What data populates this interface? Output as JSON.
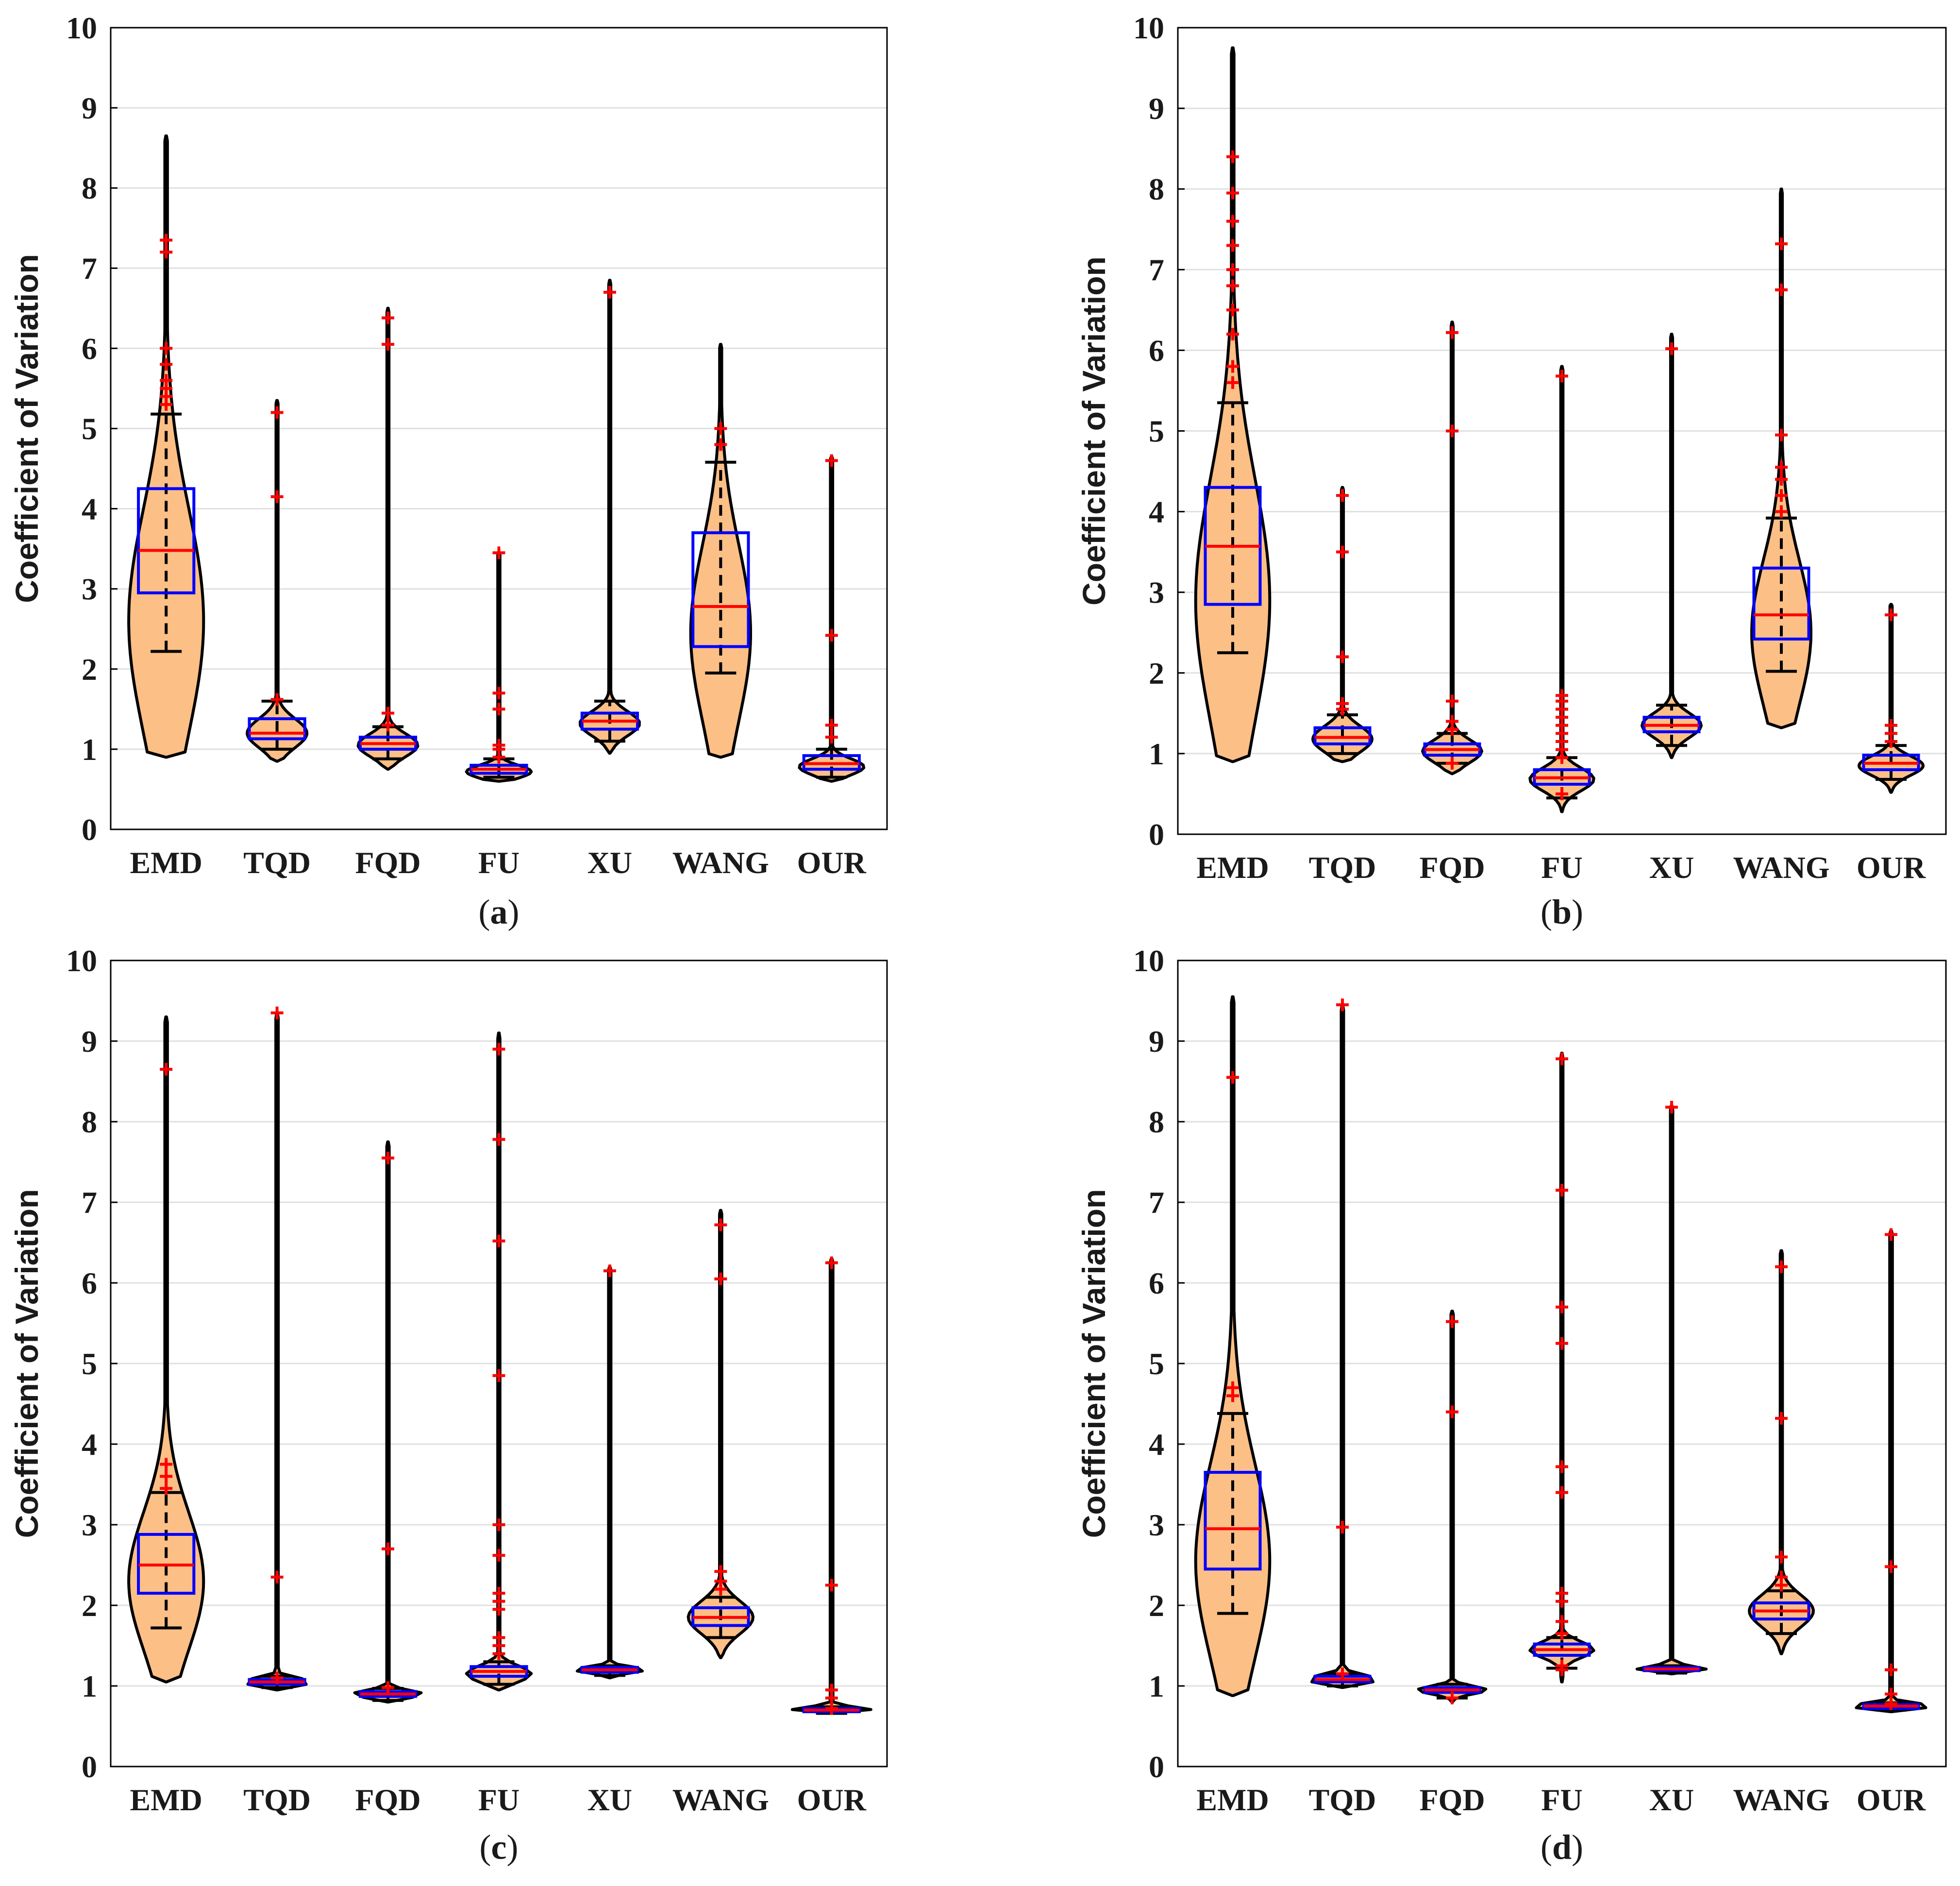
{
  "chart_data": [
    {
      "type": "violin",
      "panel": "a",
      "caption": {
        "open": "(",
        "letter": "a",
        "close": ")"
      },
      "ylabel": "Coefficient of Variation",
      "ylim": [
        0,
        10
      ],
      "yticks": [
        "0",
        "1",
        "2",
        "3",
        "4",
        "5",
        "6",
        "7",
        "8",
        "9",
        "10"
      ],
      "grid": true,
      "categories": [
        "EMD",
        "TQD",
        "FQD",
        "FU",
        "XU",
        "WANG",
        "OUR"
      ],
      "series": [
        {
          "name": "EMD",
          "min": 0.9,
          "max": 8.65,
          "q1": 2.95,
          "median": 3.48,
          "q3": 4.25,
          "whisker_low": 2.22,
          "whisker_high": 5.18,
          "violin_width": 0.75,
          "violin_center": 2.6,
          "violin_spread": 1.4,
          "outliers": [
            5.3,
            5.4,
            5.5,
            5.6,
            5.8,
            6.0,
            7.2,
            7.35
          ]
        },
        {
          "name": "TQD",
          "min": 0.85,
          "max": 5.35,
          "q1": 1.13,
          "median": 1.2,
          "q3": 1.38,
          "whisker_low": 1.0,
          "whisker_high": 1.6,
          "violin_width": 0.6,
          "violin_center": 1.2,
          "violin_spread": 0.18,
          "outliers": [
            1.62,
            4.15,
            5.2
          ]
        },
        {
          "name": "FQD",
          "min": 0.75,
          "max": 6.5,
          "q1": 1.0,
          "median": 1.07,
          "q3": 1.15,
          "whisker_low": 0.88,
          "whisker_high": 1.28,
          "violin_width": 0.6,
          "violin_center": 1.05,
          "violin_spread": 0.14,
          "outliers": [
            1.3,
            1.45,
            6.05,
            6.38
          ]
        },
        {
          "name": "FU",
          "min": 0.6,
          "max": 3.45,
          "q1": 0.7,
          "median": 0.75,
          "q3": 0.8,
          "whisker_low": 0.65,
          "whisker_high": 0.88,
          "violin_width": 0.65,
          "violin_center": 0.72,
          "violin_spread": 0.08,
          "outliers": [
            0.9,
            1.0,
            1.05,
            1.5,
            1.7,
            3.45
          ]
        },
        {
          "name": "XU",
          "min": 0.95,
          "max": 6.85,
          "q1": 1.25,
          "median": 1.35,
          "q3": 1.45,
          "whisker_low": 1.1,
          "whisker_high": 1.6,
          "violin_width": 0.6,
          "violin_center": 1.32,
          "violin_spread": 0.15,
          "outliers": [
            6.7
          ]
        },
        {
          "name": "WANG",
          "min": 0.9,
          "max": 6.05,
          "q1": 2.28,
          "median": 2.78,
          "q3": 3.7,
          "whisker_low": 1.95,
          "whisker_high": 4.58,
          "violin_width": 0.6,
          "violin_center": 2.45,
          "violin_spread": 1.1,
          "outliers": [
            4.8,
            5.0
          ]
        },
        {
          "name": "OUR",
          "min": 0.6,
          "max": 4.65,
          "q1": 0.75,
          "median": 0.82,
          "q3": 0.92,
          "whisker_low": 0.65,
          "whisker_high": 1.0,
          "violin_width": 0.65,
          "violin_center": 0.78,
          "violin_spread": 0.1,
          "outliers": [
            1.15,
            1.3,
            2.42,
            4.6
          ]
        }
      ]
    },
    {
      "type": "violin",
      "panel": "b",
      "caption": {
        "open": "(",
        "letter": "b",
        "close": ")"
      },
      "ylabel": "Coefficient of Variation",
      "ylim": [
        0,
        10
      ],
      "yticks": [
        "0",
        "1",
        "2",
        "3",
        "4",
        "5",
        "6",
        "7",
        "8",
        "9",
        "10"
      ],
      "grid": true,
      "categories": [
        "EMD",
        "TQD",
        "FQD",
        "FU",
        "XU",
        "WANG",
        "OUR"
      ],
      "series": [
        {
          "name": "EMD",
          "min": 0.9,
          "max": 9.75,
          "q1": 2.85,
          "median": 3.57,
          "q3": 4.3,
          "whisker_low": 2.25,
          "whisker_high": 5.35,
          "violin_width": 0.75,
          "violin_center": 2.9,
          "violin_spread": 1.5,
          "outliers": [
            5.6,
            5.8,
            6.2,
            6.5,
            6.8,
            7.0,
            7.3,
            7.6,
            7.95,
            8.4
          ]
        },
        {
          "name": "TQD",
          "min": 0.9,
          "max": 4.3,
          "q1": 1.12,
          "median": 1.2,
          "q3": 1.32,
          "whisker_low": 1.0,
          "whisker_high": 1.48,
          "violin_width": 0.6,
          "violin_center": 1.18,
          "violin_spread": 0.16,
          "outliers": [
            1.55,
            1.62,
            2.2,
            3.5,
            4.2
          ]
        },
        {
          "name": "FQD",
          "min": 0.75,
          "max": 6.35,
          "q1": 0.98,
          "median": 1.05,
          "q3": 1.12,
          "whisker_low": 0.88,
          "whisker_high": 1.25,
          "violin_width": 0.6,
          "violin_center": 1.03,
          "violin_spread": 0.14,
          "outliers": [
            0.88,
            1.3,
            1.4,
            1.65,
            5.0,
            6.22
          ]
        },
        {
          "name": "FU",
          "min": 0.28,
          "max": 5.8,
          "q1": 0.62,
          "median": 0.7,
          "q3": 0.8,
          "whisker_low": 0.45,
          "whisker_high": 0.95,
          "violin_width": 0.65,
          "violin_center": 0.68,
          "violin_spread": 0.14,
          "outliers": [
            0.5,
            0.95,
            1.05,
            1.15,
            1.25,
            1.35,
            1.45,
            1.55,
            1.65,
            1.72,
            5.68
          ]
        },
        {
          "name": "XU",
          "min": 0.95,
          "max": 6.2,
          "q1": 1.27,
          "median": 1.35,
          "q3": 1.45,
          "whisker_low": 1.1,
          "whisker_high": 1.6,
          "violin_width": 0.6,
          "violin_center": 1.35,
          "violin_spread": 0.15,
          "outliers": [
            6.02
          ]
        },
        {
          "name": "WANG",
          "min": 1.32,
          "max": 8.0,
          "q1": 2.42,
          "median": 2.72,
          "q3": 3.3,
          "whisker_low": 2.02,
          "whisker_high": 3.92,
          "violin_width": 0.6,
          "violin_center": 2.5,
          "violin_spread": 0.9,
          "outliers": [
            4.0,
            4.2,
            4.4,
            4.55,
            4.95,
            6.75,
            7.32
          ]
        },
        {
          "name": "OUR",
          "min": 0.52,
          "max": 2.85,
          "q1": 0.8,
          "median": 0.88,
          "q3": 0.98,
          "whisker_low": 0.68,
          "whisker_high": 1.1,
          "violin_width": 0.65,
          "violin_center": 0.85,
          "violin_spread": 0.12,
          "outliers": [
            1.15,
            1.25,
            1.35,
            2.72
          ]
        }
      ]
    },
    {
      "type": "violin",
      "panel": "c",
      "caption": {
        "open": "(",
        "letter": "c",
        "close": ")"
      },
      "ylabel": "Coefficient of Variation",
      "ylim": [
        0,
        10
      ],
      "yticks": [
        "0",
        "1",
        "2",
        "3",
        "4",
        "5",
        "6",
        "7",
        "8",
        "9",
        "10"
      ],
      "grid": true,
      "categories": [
        "EMD",
        "TQD",
        "FQD",
        "FU",
        "XU",
        "WANG",
        "OUR"
      ],
      "series": [
        {
          "name": "EMD",
          "min": 1.05,
          "max": 9.3,
          "q1": 2.15,
          "median": 2.5,
          "q3": 2.88,
          "whisker_low": 1.72,
          "whisker_high": 3.4,
          "violin_width": 0.75,
          "violin_center": 2.3,
          "violin_spread": 0.85,
          "outliers": [
            3.45,
            3.6,
            3.75,
            8.65
          ]
        },
        {
          "name": "TQD",
          "min": 0.95,
          "max": 9.35,
          "q1": 1.02,
          "median": 1.05,
          "q3": 1.08,
          "whisker_low": 0.98,
          "whisker_high": 1.12,
          "violin_width": 0.7,
          "violin_center": 1.05,
          "violin_spread": 0.05,
          "outliers": [
            1.1,
            2.35,
            9.35
          ]
        },
        {
          "name": "FQD",
          "min": 0.8,
          "max": 7.75,
          "q1": 0.87,
          "median": 0.9,
          "q3": 0.93,
          "whisker_low": 0.82,
          "whisker_high": 0.97,
          "violin_width": 0.7,
          "violin_center": 0.9,
          "violin_spread": 0.05,
          "outliers": [
            0.98,
            2.7,
            7.55
          ]
        },
        {
          "name": "FU",
          "min": 0.95,
          "max": 9.1,
          "q1": 1.12,
          "median": 1.18,
          "q3": 1.24,
          "whisker_low": 1.02,
          "whisker_high": 1.3,
          "violin_width": 0.65,
          "violin_center": 1.15,
          "violin_spread": 0.1,
          "outliers": [
            1.4,
            1.5,
            1.6,
            1.95,
            2.05,
            2.15,
            2.62,
            3.0,
            4.85,
            6.52,
            7.78,
            8.9
          ]
        },
        {
          "name": "XU",
          "min": 1.1,
          "max": 6.2,
          "q1": 1.17,
          "median": 1.2,
          "q3": 1.23,
          "whisker_low": 1.13,
          "whisker_high": 1.25,
          "violin_width": 0.7,
          "violin_center": 1.2,
          "violin_spread": 0.04,
          "outliers": [
            6.15
          ]
        },
        {
          "name": "WANG",
          "min": 1.35,
          "max": 6.9,
          "q1": 1.75,
          "median": 1.85,
          "q3": 1.97,
          "whisker_low": 1.6,
          "whisker_high": 2.1,
          "violin_width": 0.65,
          "violin_center": 1.85,
          "violin_spread": 0.2,
          "outliers": [
            2.2,
            2.3,
            2.42,
            6.05,
            6.72
          ]
        },
        {
          "name": "OUR",
          "min": 0.66,
          "max": 6.3,
          "q1": 0.68,
          "median": 0.7,
          "q3": 0.72,
          "whisker_low": 0.66,
          "whisker_high": 0.74,
          "violin_width": 0.8,
          "violin_center": 0.7,
          "violin_spread": 0.04,
          "outliers": [
            0.72,
            0.85,
            0.95,
            2.25,
            6.25
          ]
        }
      ]
    },
    {
      "type": "violin",
      "panel": "d",
      "caption": {
        "open": "(",
        "letter": "d",
        "close": ")"
      },
      "ylabel": "Coefficient of Variation",
      "ylim": [
        0,
        10
      ],
      "yticks": [
        "0",
        "1",
        "2",
        "3",
        "4",
        "5",
        "6",
        "7",
        "8",
        "9",
        "10"
      ],
      "grid": true,
      "categories": [
        "EMD",
        "TQD",
        "FQD",
        "FU",
        "XU",
        "WANG",
        "OUR"
      ],
      "series": [
        {
          "name": "EMD",
          "min": 0.88,
          "max": 9.55,
          "q1": 2.45,
          "median": 2.95,
          "q3": 3.65,
          "whisker_low": 1.9,
          "whisker_high": 4.38,
          "violin_width": 0.75,
          "violin_center": 2.55,
          "violin_spread": 1.2,
          "outliers": [
            4.6,
            4.7,
            8.55
          ]
        },
        {
          "name": "TQD",
          "min": 0.98,
          "max": 9.45,
          "q1": 1.05,
          "median": 1.08,
          "q3": 1.12,
          "whisker_low": 1.0,
          "whisker_high": 1.15,
          "violin_width": 0.7,
          "violin_center": 1.08,
          "violin_spread": 0.06,
          "outliers": [
            1.15,
            2.97,
            9.45
          ]
        },
        {
          "name": "FQD",
          "min": 0.8,
          "max": 5.65,
          "q1": 0.92,
          "median": 0.95,
          "q3": 0.98,
          "whisker_low": 0.85,
          "whisker_high": 1.02,
          "violin_width": 0.7,
          "violin_center": 0.95,
          "violin_spread": 0.05,
          "outliers": [
            0.85,
            4.4,
            5.52
          ]
        },
        {
          "name": "FU",
          "min": 1.05,
          "max": 8.85,
          "q1": 1.38,
          "median": 1.45,
          "q3": 1.52,
          "whisker_low": 1.22,
          "whisker_high": 1.6,
          "violin_width": 0.65,
          "violin_center": 1.45,
          "violin_spread": 0.1,
          "outliers": [
            1.2,
            1.25,
            1.65,
            1.8,
            2.05,
            2.15,
            3.4,
            3.72,
            5.25,
            5.7,
            7.15,
            8.78
          ]
        },
        {
          "name": "XU",
          "min": 1.15,
          "max": 8.2,
          "q1": 1.19,
          "median": 1.21,
          "q3": 1.23,
          "whisker_low": 1.16,
          "whisker_high": 1.25,
          "violin_width": 0.7,
          "violin_center": 1.21,
          "violin_spread": 0.04,
          "outliers": [
            8.18
          ]
        },
        {
          "name": "WANG",
          "min": 1.4,
          "max": 6.4,
          "q1": 1.83,
          "median": 1.93,
          "q3": 2.03,
          "whisker_low": 1.65,
          "whisker_high": 2.18,
          "violin_width": 0.65,
          "violin_center": 1.93,
          "violin_spread": 0.2,
          "outliers": [
            2.25,
            2.35,
            2.6,
            4.32,
            6.2
          ]
        },
        {
          "name": "OUR",
          "min": 0.68,
          "max": 6.65,
          "q1": 0.72,
          "median": 0.75,
          "q3": 0.77,
          "whisker_low": 0.7,
          "whisker_high": 0.79,
          "violin_width": 0.8,
          "violin_center": 0.75,
          "violin_spread": 0.04,
          "outliers": [
            0.78,
            0.9,
            1.2,
            2.48,
            6.6
          ]
        }
      ]
    }
  ],
  "colors": {
    "violin_fill": "#fcbf86",
    "violin_stroke": "#000000",
    "box": "#0000ff",
    "median": "#ff0000",
    "outlier": "#ff0000",
    "grid": "#e0e0e0",
    "axis": "#000000"
  }
}
